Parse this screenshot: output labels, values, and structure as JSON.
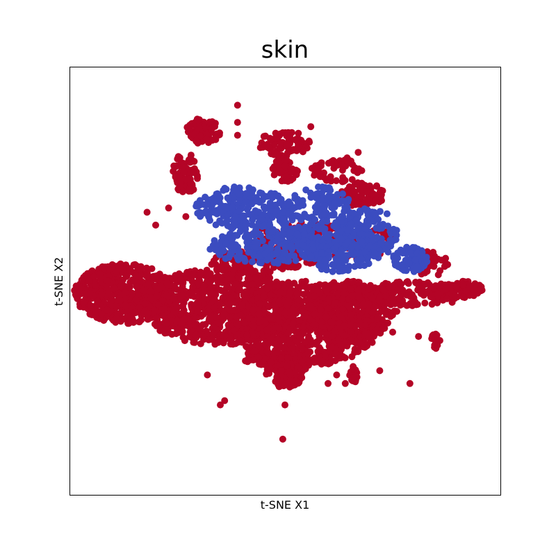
{
  "chart_data": {
    "type": "scatter",
    "title": "skin",
    "xlabel": "t-SNE X1",
    "ylabel": "t-SNE X2",
    "xlim": [
      -50,
      50
    ],
    "ylim": [
      -50,
      50
    ],
    "grid": false,
    "legend": "none",
    "ticks_shown": false,
    "series": [
      {
        "color": "#3b4cc0",
        "clusters": [
          {
            "cx": -10,
            "cy": 17,
            "rx": 11,
            "ry": 5,
            "n": 220
          },
          {
            "cx": 8,
            "cy": 14,
            "rx": 9,
            "ry": 8,
            "n": 240
          },
          {
            "cx": 20,
            "cy": 11,
            "rx": 6,
            "ry": 6,
            "n": 140
          },
          {
            "cx": -4,
            "cy": 8,
            "rx": 14,
            "ry": 4,
            "n": 200
          },
          {
            "cx": 29,
            "cy": 5,
            "rx": 4,
            "ry": 3,
            "n": 80
          },
          {
            "cx": 13,
            "cy": 6,
            "rx": 8,
            "ry": 4,
            "n": 120
          }
        ]
      },
      {
        "color": "#b40426",
        "clusters": [
          {
            "cx": -37,
            "cy": -3,
            "rx": 12,
            "ry": 7,
            "n": 500
          },
          {
            "cx": -15,
            "cy": -6,
            "rx": 18,
            "ry": 9,
            "n": 800
          },
          {
            "cx": 5,
            "cy": -10,
            "rx": 17,
            "ry": 10,
            "n": 800
          },
          {
            "cx": 15,
            "cy": -7,
            "rx": 11,
            "ry": 7,
            "n": 380
          },
          {
            "cx": 30,
            "cy": -3,
            "rx": 12,
            "ry": 3,
            "n": 160
          },
          {
            "cx": 42,
            "cy": -2,
            "rx": 4,
            "ry": 2,
            "n": 60
          },
          {
            "cx": 0,
            "cy": -21,
            "rx": 5,
            "ry": 4,
            "n": 120
          },
          {
            "cx": -19,
            "cy": 35,
            "rx": 4,
            "ry": 3,
            "n": 80
          },
          {
            "cx": -23,
            "cy": 25,
            "rx": 3,
            "ry": 5,
            "n": 70
          },
          {
            "cx": 0,
            "cy": 32,
            "rx": 6,
            "ry": 3,
            "n": 80
          },
          {
            "cx": 18,
            "cy": 20,
            "rx": 5,
            "ry": 3,
            "n": 80
          },
          {
            "cx": 0,
            "cy": 26,
            "rx": 3,
            "ry": 3,
            "n": 50
          },
          {
            "cx": 12,
            "cy": 26,
            "rx": 6,
            "ry": 3,
            "n": 50
          },
          {
            "cx": 8,
            "cy": 9,
            "rx": 18,
            "ry": 5,
            "n": 180
          },
          {
            "cx": -6,
            "cy": 5,
            "rx": 12,
            "ry": 3,
            "n": 120
          },
          {
            "cx": 34,
            "cy": 4,
            "rx": 4,
            "ry": 3,
            "n": 40
          },
          {
            "cx": 35,
            "cy": -14,
            "rx": 1,
            "ry": 2,
            "n": 15
          },
          {
            "cx": -6,
            "cy": -18,
            "rx": 4,
            "ry": 2,
            "n": 40
          },
          {
            "cx": 16,
            "cy": -22,
            "rx": 1,
            "ry": 2,
            "n": 20
          }
        ],
        "points": [
          [
            -11,
            41
          ],
          [
            -11,
            37
          ],
          [
            -11,
            34
          ],
          [
            -23,
            15
          ],
          [
            -32,
            16
          ],
          [
            -30,
            13
          ],
          [
            -27,
            17
          ],
          [
            -15,
            0
          ],
          [
            -18,
            -22
          ],
          [
            -14,
            -28
          ],
          [
            -15,
            -29
          ],
          [
            0,
            -29
          ],
          [
            -0.5,
            -37
          ],
          [
            31,
            -13
          ],
          [
            25,
            -12
          ],
          [
            22,
            -21
          ],
          [
            29,
            -24
          ],
          [
            14,
            -24
          ],
          [
            12,
            -22
          ],
          [
            10,
            -24
          ],
          [
            -3,
            30
          ],
          [
            6,
            36
          ],
          [
            17,
            30
          ]
        ]
      }
    ]
  }
}
